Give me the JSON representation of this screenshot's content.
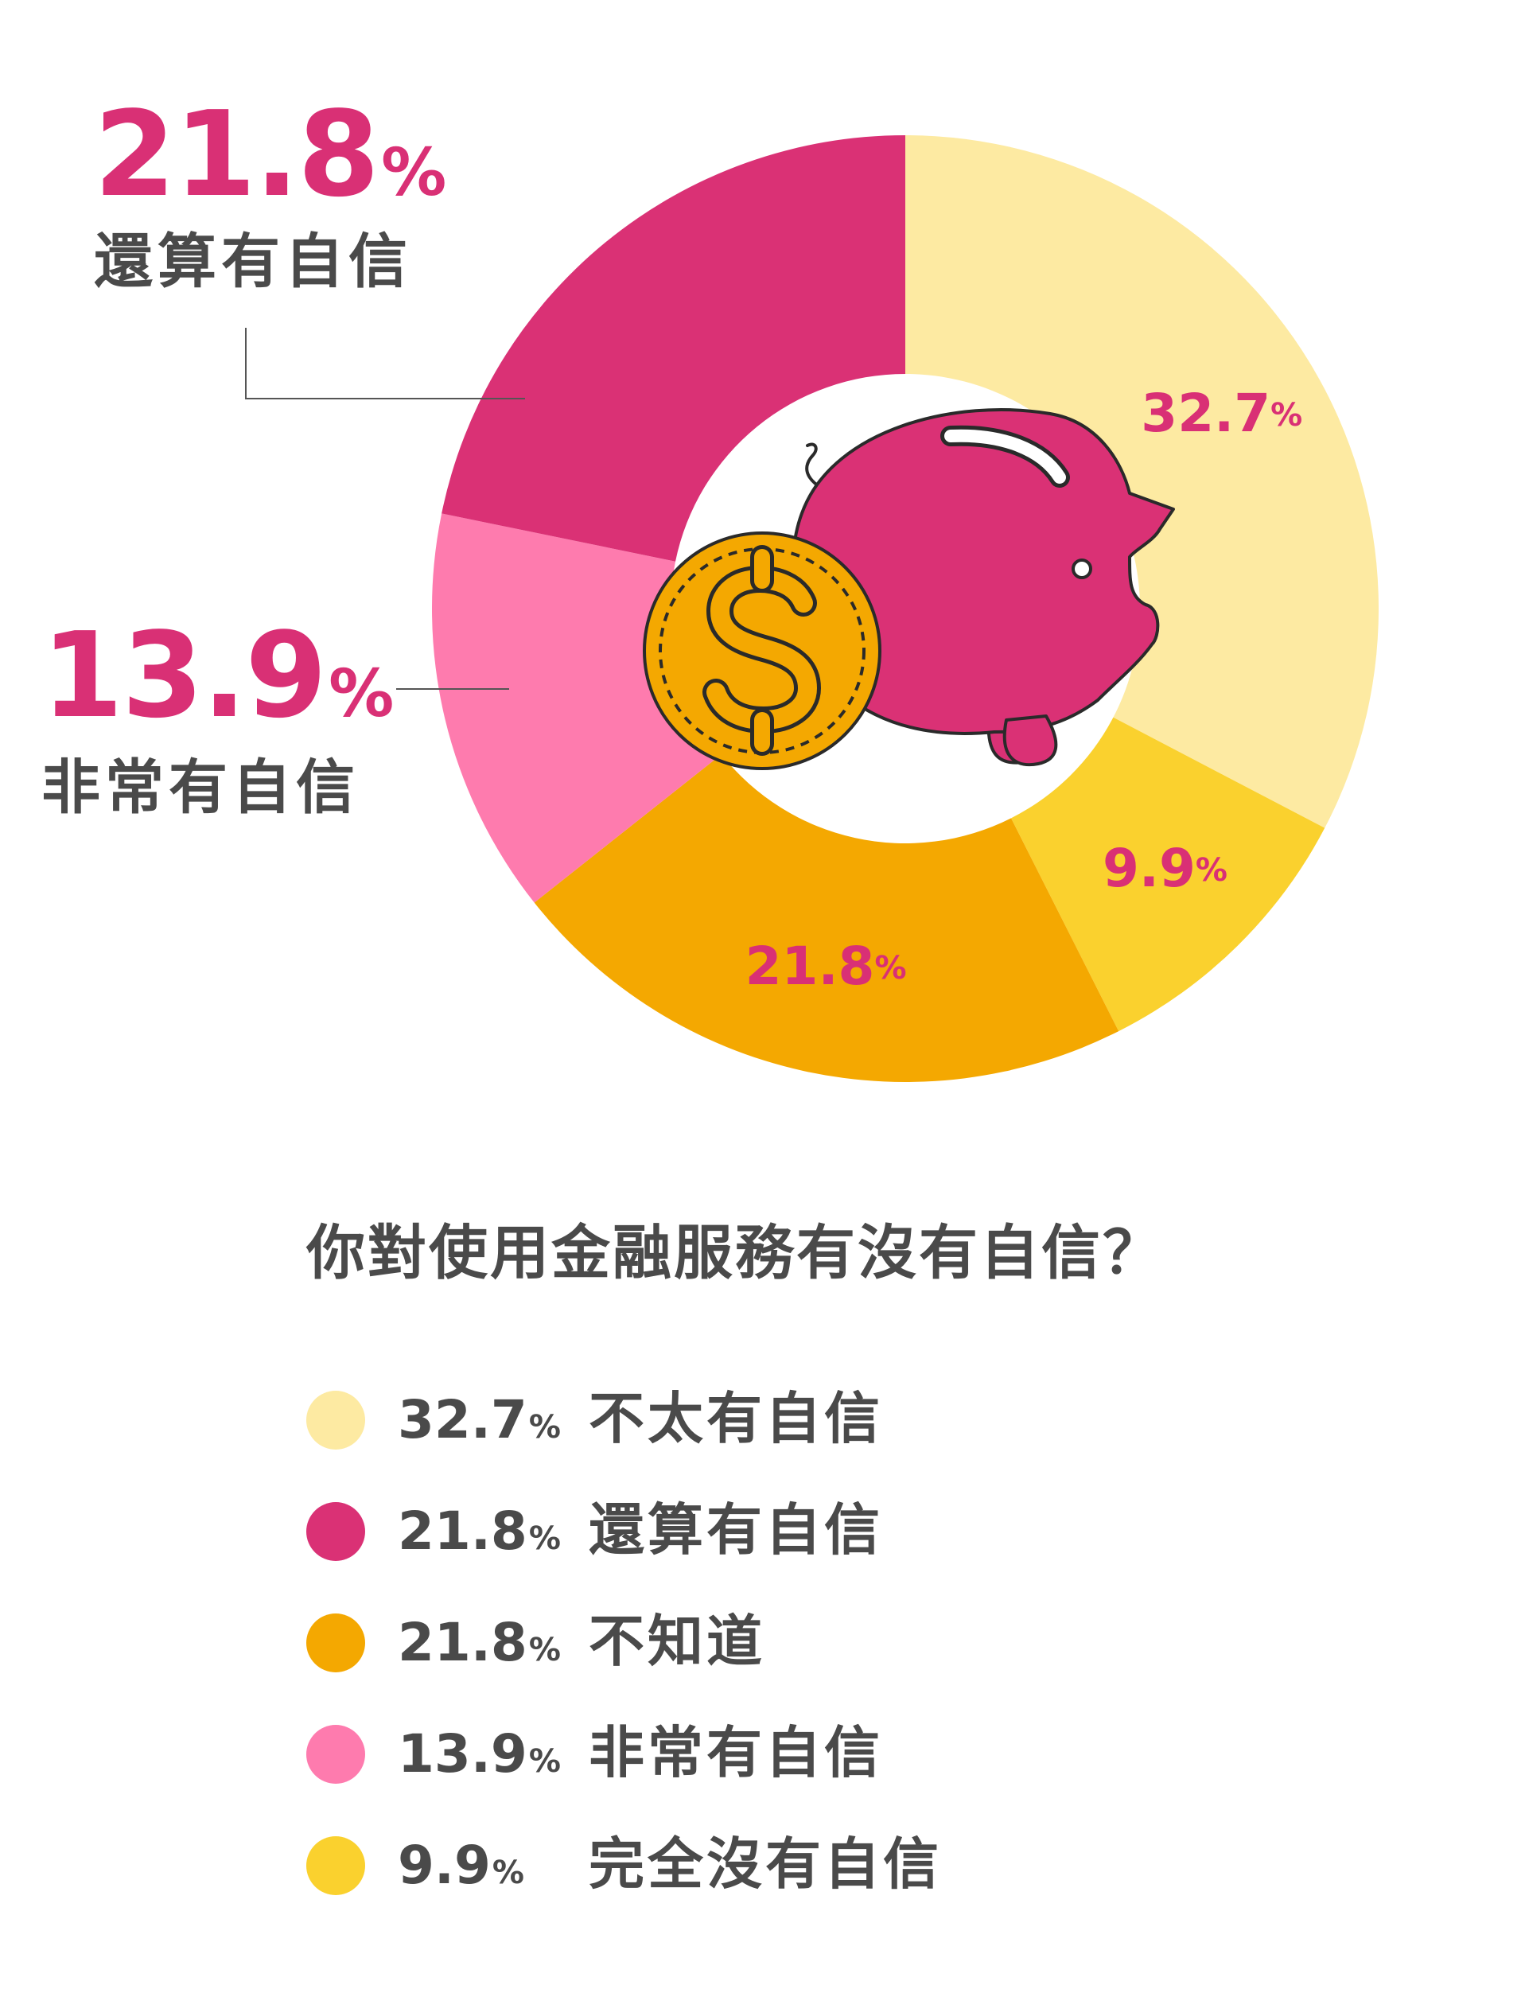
{
  "chart_data": {
    "type": "pie",
    "title": "你對使用金融服務有沒有自信？",
    "percent_sign": "%",
    "slices": [
      {
        "label": "不太有自信",
        "value": 32.7,
        "display": "32.7",
        "color": "#fdeaa2"
      },
      {
        "label": "完全沒有自信",
        "value": 9.9,
        "display": "9.9",
        "color": "#fad12e"
      },
      {
        "label": "不知道",
        "value": 21.8,
        "display": "21.8",
        "color": "#f4a801"
      },
      {
        "label": "非常有自信",
        "value": 13.9,
        "display": "13.9",
        "color": "#fe7bae"
      },
      {
        "label": "還算有自信",
        "value": 21.8,
        "display": "21.8",
        "color": "#da3175"
      }
    ],
    "callouts": [
      {
        "value": "21.8",
        "label": "還算有自信"
      },
      {
        "value": "13.9",
        "label": "非常有自信"
      }
    ],
    "legend": [
      {
        "value": "32.7",
        "label": "不太有自信",
        "color": "#fdeaa2"
      },
      {
        "value": "21.8",
        "label": "還算有自信",
        "color": "#da3175"
      },
      {
        "value": "21.8",
        "label": "不知道",
        "color": "#f4a801"
      },
      {
        "value": "13.9",
        "label": "非常有自信",
        "color": "#fe7bae"
      },
      {
        "value": "9.9",
        "label": "完全沒有自信",
        "color": "#fad12e"
      }
    ],
    "label_color": "#d93075",
    "center_icons": [
      "piggy-bank-icon",
      "dollar-coin-icon"
    ]
  }
}
